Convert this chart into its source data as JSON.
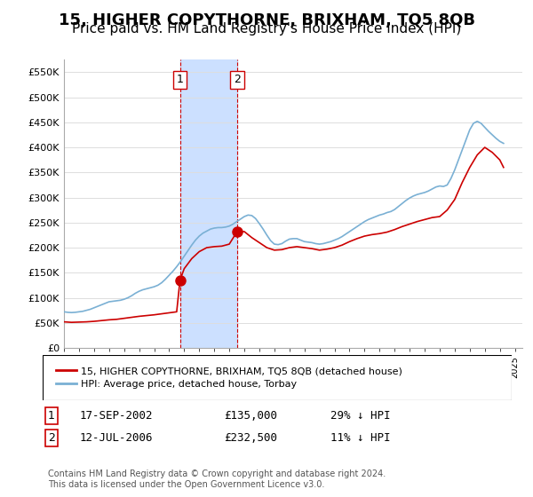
{
  "title": "15, HIGHER COPYTHORNE, BRIXHAM, TQ5 8QB",
  "subtitle": "Price paid vs. HM Land Registry's House Price Index (HPI)",
  "title_fontsize": 13,
  "subtitle_fontsize": 11,
  "xlim": [
    1995,
    2025.5
  ],
  "ylim": [
    0,
    575000
  ],
  "yticks": [
    0,
    50000,
    100000,
    150000,
    200000,
    250000,
    300000,
    350000,
    400000,
    450000,
    500000,
    550000
  ],
  "ytick_labels": [
    "£0",
    "£50K",
    "£100K",
    "£150K",
    "£200K",
    "£250K",
    "£300K",
    "£350K",
    "£400K",
    "£450K",
    "£500K",
    "£550K"
  ],
  "shade_x1": 2002.72,
  "shade_x2": 2006.53,
  "shade_color": "#cce0ff",
  "grid_color": "#dddddd",
  "sale1_x": 2002.72,
  "sale1_y": 135000,
  "sale1_label": "1",
  "sale2_x": 2006.53,
  "sale2_y": 232500,
  "sale2_label": "2",
  "marker_color": "#cc0000",
  "marker_size": 8,
  "line1_color": "#cc0000",
  "line2_color": "#7ab0d4",
  "legend_line1": "15, HIGHER COPYTHORNE, BRIXHAM, TQ5 8QB (detached house)",
  "legend_line2": "HPI: Average price, detached house, Torbay",
  "table_row1": [
    "1",
    "17-SEP-2002",
    "£135,000",
    "29% ↓ HPI"
  ],
  "table_row2": [
    "2",
    "12-JUL-2006",
    "£232,500",
    "11% ↓ HPI"
  ],
  "footer": "Contains HM Land Registry data © Crown copyright and database right 2024.\nThis data is licensed under the Open Government Licence v3.0.",
  "hpi_years": [
    1995.0,
    1995.25,
    1995.5,
    1995.75,
    1996.0,
    1996.25,
    1996.5,
    1996.75,
    1997.0,
    1997.25,
    1997.5,
    1997.75,
    1998.0,
    1998.25,
    1998.5,
    1998.75,
    1999.0,
    1999.25,
    1999.5,
    1999.75,
    2000.0,
    2000.25,
    2000.5,
    2000.75,
    2001.0,
    2001.25,
    2001.5,
    2001.75,
    2002.0,
    2002.25,
    2002.5,
    2002.75,
    2003.0,
    2003.25,
    2003.5,
    2003.75,
    2004.0,
    2004.25,
    2004.5,
    2004.75,
    2005.0,
    2005.25,
    2005.5,
    2005.75,
    2006.0,
    2006.25,
    2006.5,
    2006.75,
    2007.0,
    2007.25,
    2007.5,
    2007.75,
    2008.0,
    2008.25,
    2008.5,
    2008.75,
    2009.0,
    2009.25,
    2009.5,
    2009.75,
    2010.0,
    2010.25,
    2010.5,
    2010.75,
    2011.0,
    2011.25,
    2011.5,
    2011.75,
    2012.0,
    2012.25,
    2012.5,
    2012.75,
    2013.0,
    2013.25,
    2013.5,
    2013.75,
    2014.0,
    2014.25,
    2014.5,
    2014.75,
    2015.0,
    2015.25,
    2015.5,
    2015.75,
    2016.0,
    2016.25,
    2016.5,
    2016.75,
    2017.0,
    2017.25,
    2017.5,
    2017.75,
    2018.0,
    2018.25,
    2018.5,
    2018.75,
    2019.0,
    2019.25,
    2019.5,
    2019.75,
    2020.0,
    2020.25,
    2020.5,
    2020.75,
    2021.0,
    2021.25,
    2021.5,
    2021.75,
    2022.0,
    2022.25,
    2022.5,
    2022.75,
    2023.0,
    2023.25,
    2023.5,
    2023.75,
    2024.0,
    2024.25
  ],
  "hpi_values": [
    72000,
    71000,
    70500,
    71000,
    72000,
    73000,
    75000,
    77000,
    80000,
    83000,
    86000,
    89000,
    92000,
    93000,
    94000,
    95000,
    97000,
    100000,
    104000,
    109000,
    113000,
    116000,
    118000,
    120000,
    122000,
    125000,
    130000,
    137000,
    145000,
    153000,
    162000,
    172000,
    183000,
    194000,
    205000,
    215000,
    223000,
    229000,
    233000,
    237000,
    239000,
    240000,
    240000,
    241000,
    243000,
    247000,
    252000,
    257000,
    262000,
    265000,
    264000,
    258000,
    248000,
    237000,
    225000,
    214000,
    207000,
    206000,
    208000,
    213000,
    217000,
    218000,
    218000,
    215000,
    212000,
    211000,
    210000,
    208000,
    207000,
    208000,
    210000,
    212000,
    215000,
    218000,
    222000,
    227000,
    232000,
    237000,
    242000,
    247000,
    252000,
    256000,
    259000,
    262000,
    265000,
    267000,
    270000,
    272000,
    276000,
    282000,
    288000,
    294000,
    299000,
    303000,
    306000,
    308000,
    310000,
    313000,
    317000,
    321000,
    323000,
    322000,
    325000,
    338000,
    355000,
    375000,
    395000,
    415000,
    435000,
    448000,
    452000,
    448000,
    440000,
    432000,
    425000,
    418000,
    412000,
    408000
  ],
  "pp_years": [
    1995.0,
    1995.5,
    1996.0,
    1996.5,
    1997.0,
    1997.5,
    1998.0,
    1998.5,
    1999.0,
    1999.5,
    2000.0,
    2000.5,
    2001.0,
    2001.5,
    2002.0,
    2002.5,
    2002.72,
    2003.0,
    2003.5,
    2004.0,
    2004.5,
    2005.0,
    2005.5,
    2006.0,
    2006.53,
    2007.0,
    2007.5,
    2008.0,
    2008.5,
    2009.0,
    2009.5,
    2010.0,
    2010.5,
    2011.0,
    2011.5,
    2012.0,
    2012.5,
    2013.0,
    2013.5,
    2014.0,
    2014.5,
    2015.0,
    2015.5,
    2016.0,
    2016.5,
    2017.0,
    2017.5,
    2018.0,
    2018.5,
    2019.0,
    2019.5,
    2020.0,
    2020.5,
    2021.0,
    2021.5,
    2022.0,
    2022.5,
    2023.0,
    2023.5,
    2024.0,
    2024.25
  ],
  "pp_values": [
    52000,
    51000,
    51500,
    52000,
    53000,
    54500,
    56000,
    57000,
    59000,
    61000,
    63000,
    64500,
    66000,
    68000,
    70000,
    72000,
    135000,
    158000,
    178000,
    192000,
    200000,
    202000,
    203000,
    207000,
    232500,
    232000,
    220000,
    210000,
    200000,
    195000,
    196000,
    200000,
    202000,
    200000,
    198000,
    195000,
    197000,
    200000,
    205000,
    212000,
    218000,
    223000,
    226000,
    228000,
    231000,
    236000,
    242000,
    247000,
    252000,
    256000,
    260000,
    262000,
    275000,
    296000,
    330000,
    360000,
    385000,
    400000,
    390000,
    375000,
    360000
  ]
}
